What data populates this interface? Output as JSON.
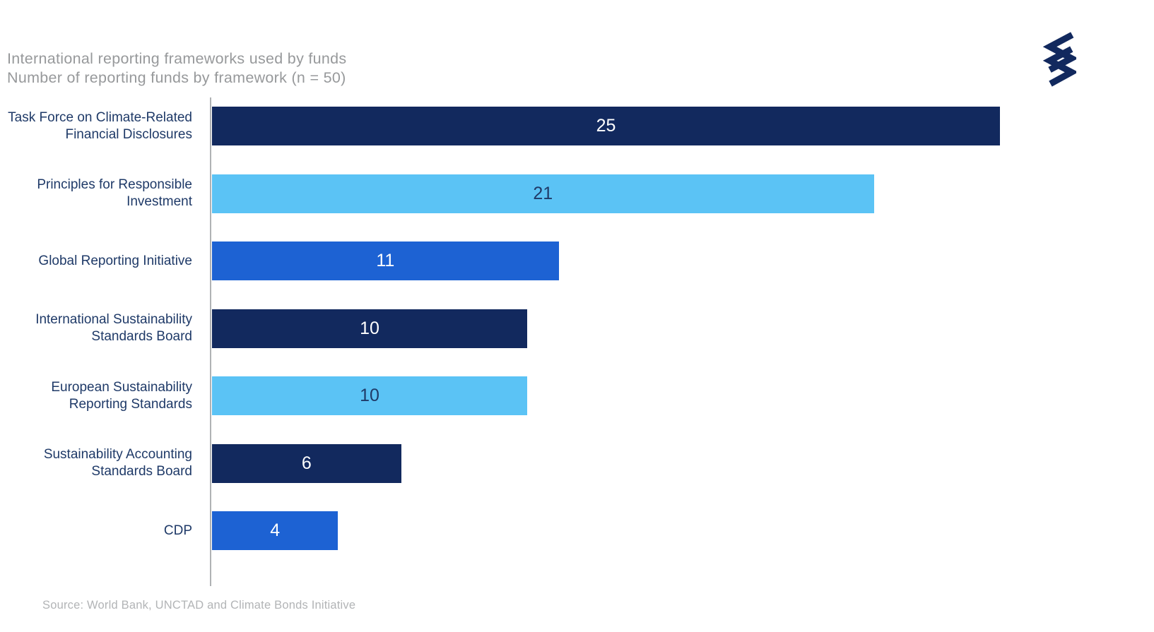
{
  "title": {
    "line1": "International reporting frameworks used by funds",
    "line2": "Number of reporting funds by framework (n = 50)"
  },
  "source": "Source: World Bank, UNCTAD and Climate Bonds Initiative",
  "logo": {
    "name": "helix-brand-logo",
    "color": "#12295e"
  },
  "colors": {
    "navy": "#12295e",
    "blue": "#1d62d3",
    "lightblue": "#5bc3f5",
    "label-text": "#1f3a68",
    "title-text": "#97999b",
    "source-text": "#b2b4b6",
    "axis-line": "#b0b2b4",
    "value-on-dark": "#ffffff"
  },
  "chart_data": {
    "type": "bar",
    "orientation": "horizontal",
    "title": "International reporting frameworks used by funds",
    "subtitle": "Number of reporting funds by framework (n = 50)",
    "n": 50,
    "categories": [
      "Task Force on Climate-Related Financial Disclosures",
      "Principles for Responsible Investment",
      "Global Reporting Initiative",
      "International Sustainability Standards Board",
      "European Sustainability Reporting Standards",
      "Sustainability Accounting Standards Board",
      "CDP"
    ],
    "label_lines": [
      [
        "Task Force on Climate-Related",
        "Financial Disclosures"
      ],
      [
        "Principles for Responsible",
        "Investment"
      ],
      [
        "Global Reporting Initiative"
      ],
      [
        "International Sustainability",
        "Standards Board"
      ],
      [
        "European Sustainability",
        "Reporting Standards"
      ],
      [
        "Sustainability Accounting",
        "Standards Board"
      ],
      [
        "CDP"
      ]
    ],
    "values": [
      25,
      21,
      11,
      10,
      10,
      6,
      4
    ],
    "bar_colors": [
      "#12295e",
      "#5bc3f5",
      "#1d62d3",
      "#12295e",
      "#5bc3f5",
      "#12295e",
      "#1d62d3"
    ],
    "value_label_colors": [
      "#ffffff",
      "#1f3a68",
      "#ffffff",
      "#ffffff",
      "#1f3a68",
      "#ffffff",
      "#ffffff"
    ],
    "xlim": [
      0,
      25
    ],
    "grid": false,
    "legend": false,
    "value_labels_position": "center-inside",
    "source": "Source: World Bank, UNCTAD and Climate Bonds Initiative"
  }
}
